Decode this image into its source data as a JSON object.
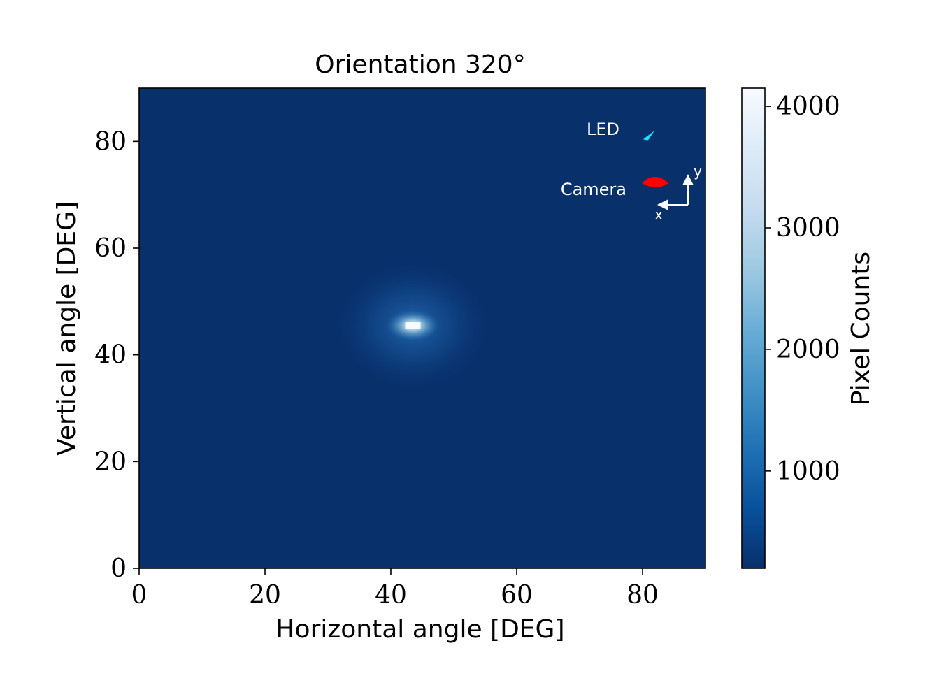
{
  "chart_data": {
    "type": "heatmap",
    "title": "Orientation 320°",
    "xlabel": "Horizontal angle [DEG]",
    "ylabel": "Vertical angle [DEG]",
    "xlim": [
      0,
      90
    ],
    "ylim": [
      0,
      90
    ],
    "xticks": [
      0,
      20,
      40,
      60,
      80
    ],
    "yticks": [
      0,
      20,
      40,
      60,
      80
    ],
    "peak": {
      "x": 43.5,
      "y": 45.5,
      "value": 4150
    },
    "background_value": 200,
    "colorbar": {
      "label": "Pixel Counts",
      "range": [
        200,
        4150
      ],
      "ticks": [
        1000,
        2000,
        3000,
        4000
      ],
      "colormap": "Blues"
    },
    "grid": false,
    "annotations": {
      "led_label": "LED",
      "camera_label": "Camera",
      "axis_x_label": "x",
      "axis_y_label": "y"
    },
    "colors": {
      "led": "#1ee1ff",
      "camera": "#ff0000",
      "background": "#08306b"
    }
  }
}
